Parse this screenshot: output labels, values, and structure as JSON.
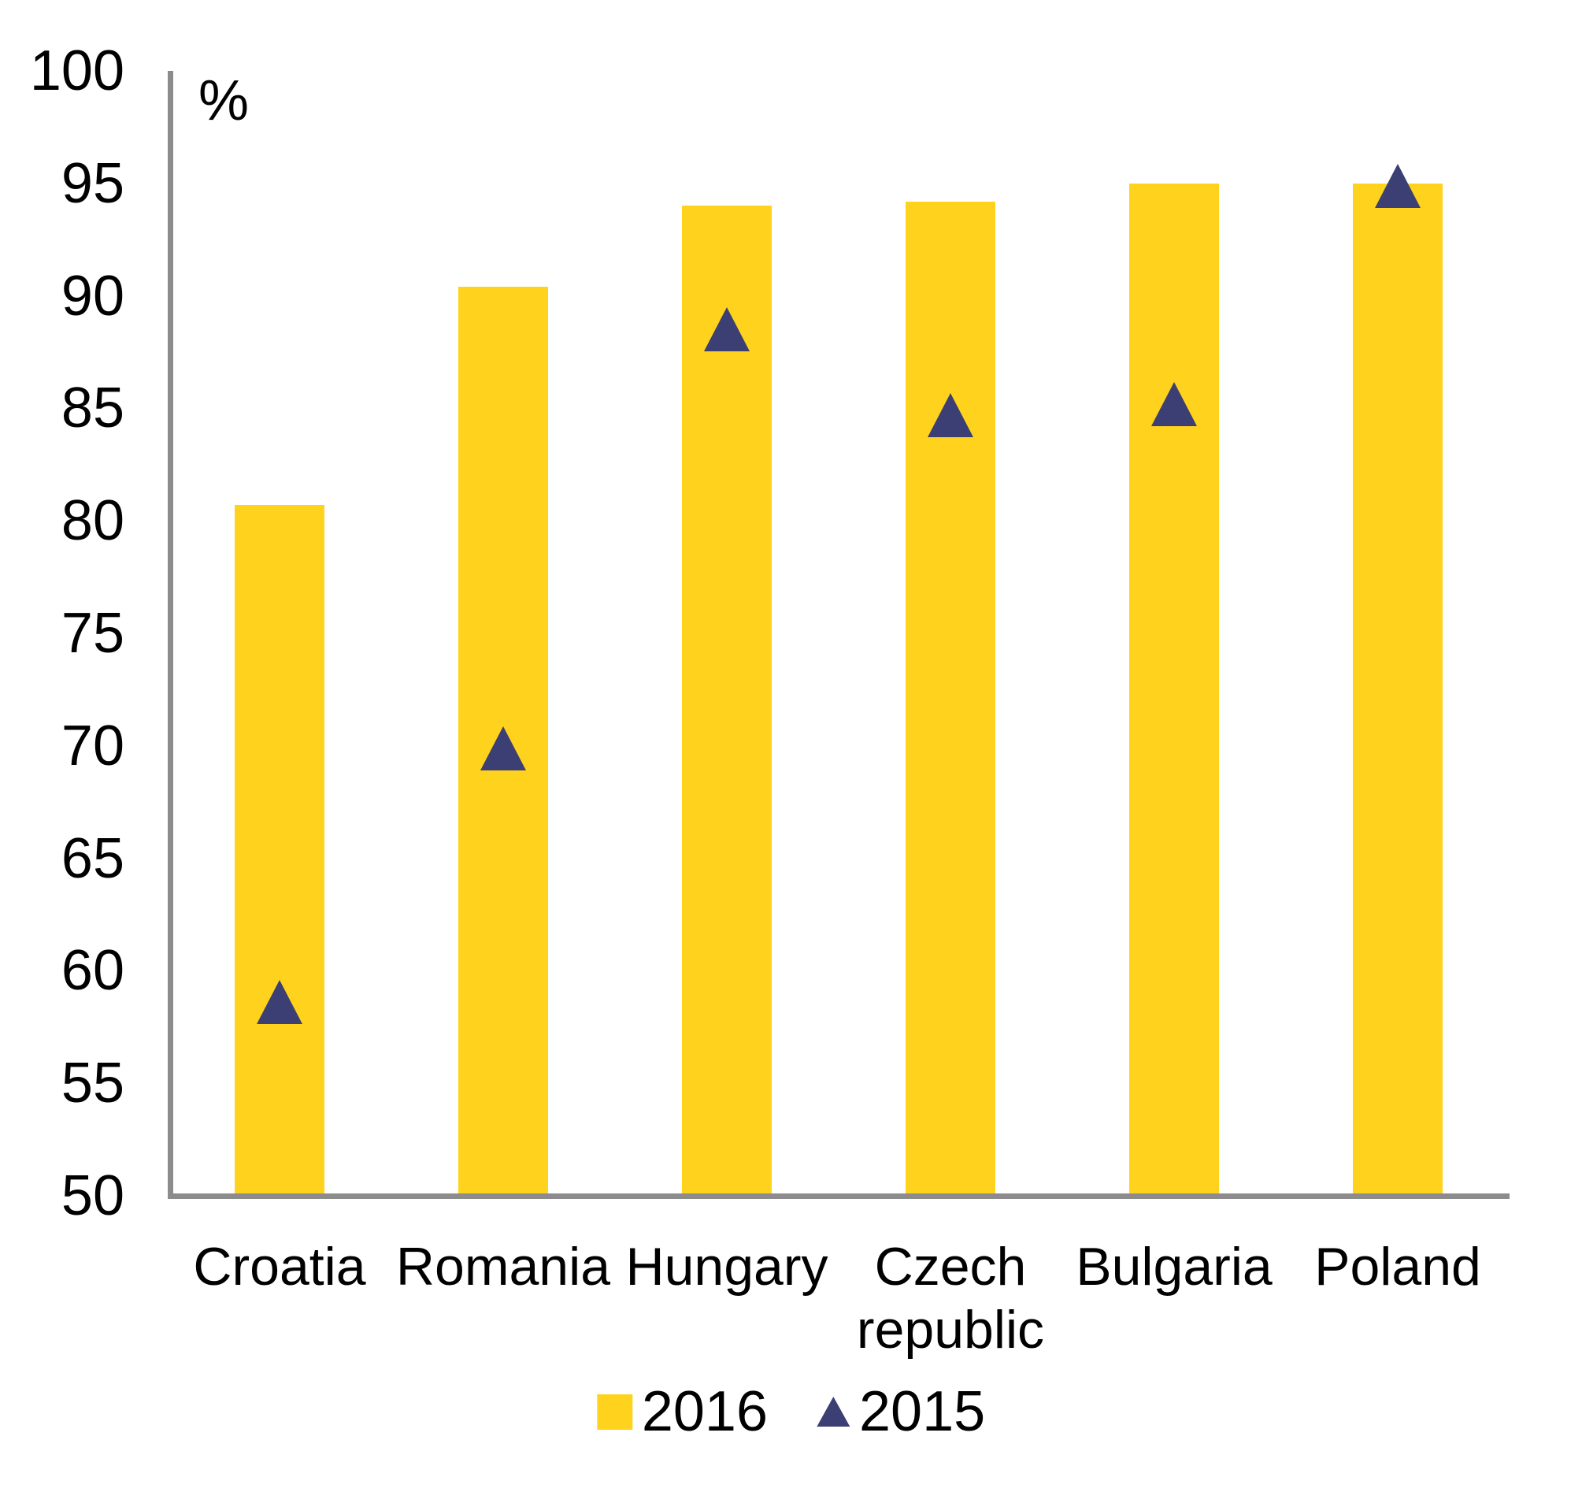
{
  "chart_data": {
    "type": "bar",
    "title": "",
    "unit_label": "%",
    "categories": [
      "Croatia",
      "Romania",
      "Hungary",
      "Czech republic",
      "Bulgaria",
      "Poland"
    ],
    "series": [
      {
        "name": "2016",
        "marker": "bar",
        "color": "#FFD21E",
        "values": [
          80.6,
          90.3,
          93.9,
          94.1,
          94.9,
          94.9
        ]
      },
      {
        "name": "2015",
        "marker": "triangle",
        "color": "#3B3F73",
        "values": [
          58.6,
          69.9,
          88.5,
          84.7,
          85.2,
          94.9
        ]
      }
    ],
    "ylim": [
      50,
      100
    ],
    "yticks": [
      50,
      55,
      60,
      65,
      70,
      75,
      80,
      85,
      90,
      95,
      100
    ],
    "xlabel": "",
    "ylabel": "%",
    "grid": false,
    "legend_position": "bottom",
    "colors": {
      "bar_2016": "#FFD21E",
      "marker_2015": "#3B3F73",
      "axis": "#8C8C8C",
      "text": "#000000",
      "background": "#FFFFFF"
    }
  }
}
